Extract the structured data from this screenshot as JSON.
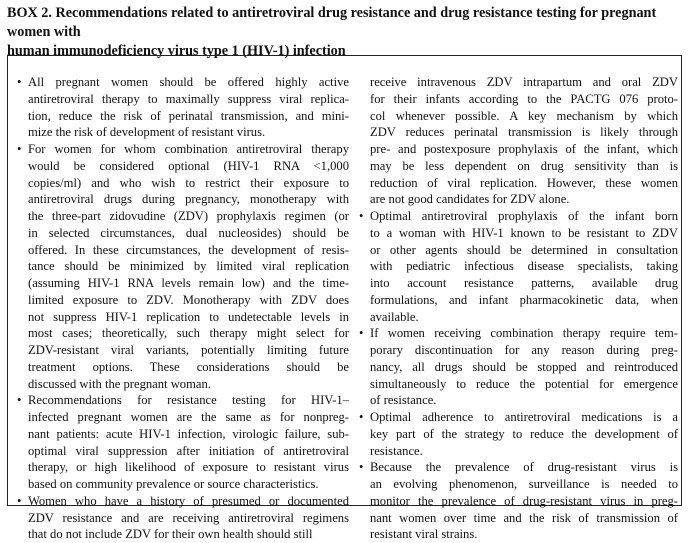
{
  "title": "BOX 2. Recommendations related to antiretroviral drug resistance and drug resistance testing for pregnant women with human immunodeficiency virus type 1 (HIV-1) infection",
  "title_lines": [
    "BOX 2. Recommendations related to antiretroviral drug resistance and drug resistance testing for pregnant women with",
    "human immunodeficiency virus type 1 (HIV-1) infection"
  ],
  "bullet_glyph": "•",
  "left_column": [
    {
      "bullet": true,
      "lines": [
        "All pregnant women should be offered highly active",
        "antiretroviral therapy to maximally suppress viral replica-",
        "tion, reduce the risk of perinatal transmission, and mini-",
        "mize the risk of development of resistant virus."
      ]
    },
    {
      "bullet": true,
      "lines": [
        "For women for whom combination antiretroviral therapy",
        "would be considered optional (HIV-1 RNA <1,000",
        "copies/ml) and who wish to restrict their exposure to",
        "antiretroviral drugs during pregnancy, monotherapy with",
        "the three-part zidovudine (ZDV) prophylaxis regimen (or",
        "in selected circumstances, dual nucleosides) should be",
        "offered. In these circumstances, the development of resis-",
        "tance should be minimized by limited viral replication",
        "(assuming HIV-1 RNA levels remain low) and the time-",
        "limited exposure to ZDV. Monotherapy with ZDV does",
        "not suppress HIV-1 replication to undetectable levels in",
        "most cases; theoretically, such therapy might select for",
        "ZDV-resistant viral variants, potentially limiting future",
        "treatment options. These considerations should be",
        "discussed with the pregnant woman."
      ]
    },
    {
      "bullet": true,
      "lines": [
        "Recommendations for resistance testing for HIV-1–",
        "infected pregnant women are the same as for nonpreg-",
        "nant patients: acute HIV-1 infection, virologic failure, sub-",
        "optimal viral suppression after initiation of antiretroviral",
        "therapy, or high likelihood of exposure to resistant virus",
        "based on community prevalence or source characteristics."
      ]
    },
    {
      "bullet": true,
      "lines": [
        "Women who have a history of presumed or documented",
        "ZDV resistance and are receiving antiretroviral regimens",
        "that do not include ZDV for their own health should still"
      ]
    }
  ],
  "right_column": [
    {
      "bullet": false,
      "lines": [
        "receive intravenous ZDV intrapartum and oral ZDV",
        "for their infants according to the PACTG 076 proto-",
        "col whenever possible. A key mechanism by which",
        "ZDV reduces perinatal transmission is likely through",
        "pre- and postexposure prophylaxis of the infant, which",
        "may be less dependent on drug sensitivity than is",
        "reduction of viral replication. However, these women",
        "are not good candidates for ZDV alone."
      ]
    },
    {
      "bullet": true,
      "lines": [
        "Optimal antiretroviral prophylaxis of the infant born",
        "to a woman with HIV-1 known to be resistant to ZDV",
        "or other agents should be determined in consultation",
        "with pediatric infectious disease specialists, taking",
        "into account resistance patterns, available drug",
        "formulations, and infant pharmacokinetic data, when",
        "available."
      ]
    },
    {
      "bullet": true,
      "lines": [
        "If women receiving combination therapy require tem-",
        "porary discontinuation for any reason during preg-",
        "nancy, all drugs should be stopped and reintroduced",
        "simultaneously to reduce the potential for emergence",
        "of resistance."
      ]
    },
    {
      "bullet": true,
      "lines": [
        "Optimal adherence to antiretroviral medications is a",
        "key part of the strategy to reduce the development of",
        "resistance."
      ]
    },
    {
      "bullet": true,
      "lines": [
        "Because the prevalence of drug-resistant virus is",
        "an evolving phenomenon, surveillance is needed to",
        "monitor the prevalence of drug-resistant virus in preg-",
        "nant women over time and the risk of transmission of",
        "resistant viral strains."
      ]
    }
  ]
}
